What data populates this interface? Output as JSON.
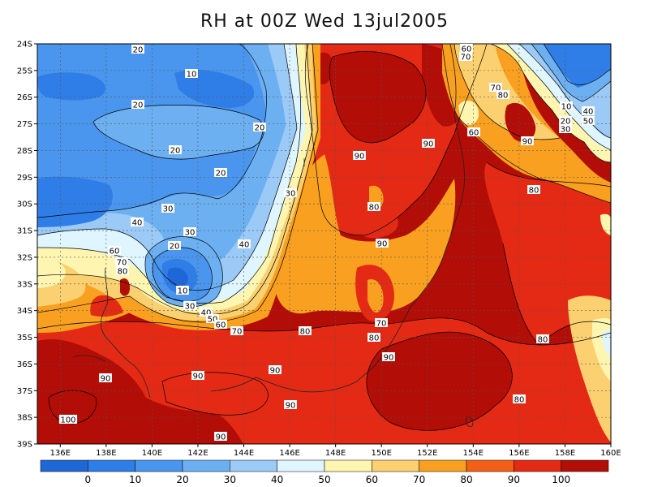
{
  "title": "RH at 00Z Wed 13jul2005",
  "map": {
    "lat_labels": [
      "24S",
      "25S",
      "26S",
      "27S",
      "28S",
      "29S",
      "30S",
      "31S",
      "32S",
      "33S",
      "34S",
      "35S",
      "36S",
      "37S",
      "38S",
      "39S"
    ],
    "lon_labels": [
      "136E",
      "138E",
      "140E",
      "142E",
      "144E",
      "146E",
      "148E",
      "150E",
      "152E",
      "154E",
      "156E",
      "158E",
      "160E"
    ],
    "lon_range": [
      135,
      160
    ],
    "lat_range": [
      -39,
      -24
    ],
    "contour_labels": [
      "20",
      "10",
      "20",
      "20",
      "20",
      "20",
      "30",
      "30",
      "40",
      "30",
      "20",
      "40",
      "60",
      "70",
      "80",
      "10",
      "30",
      "40",
      "50",
      "60",
      "70",
      "80",
      "90",
      "80",
      "90",
      "90",
      "80",
      "90",
      "60",
      "70",
      "70",
      "80",
      "60",
      "90",
      "80",
      "10",
      "20",
      "30",
      "40",
      "50",
      "70",
      "80",
      "90",
      "90",
      "90",
      "80",
      "90",
      "90",
      "100"
    ],
    "grid": true
  },
  "colorbar": {
    "ticks": [
      "0",
      "10",
      "20",
      "30",
      "40",
      "50",
      "60",
      "70",
      "80",
      "90",
      "100"
    ],
    "colors": [
      "#1f66d6",
      "#2f7ee8",
      "#4a96ee",
      "#6cb0f2",
      "#9ccaf6",
      "#dff5ff",
      "#fdf5b0",
      "#fbd070",
      "#f9a020",
      "#f26018",
      "#e42a14",
      "#b20d06"
    ]
  }
}
